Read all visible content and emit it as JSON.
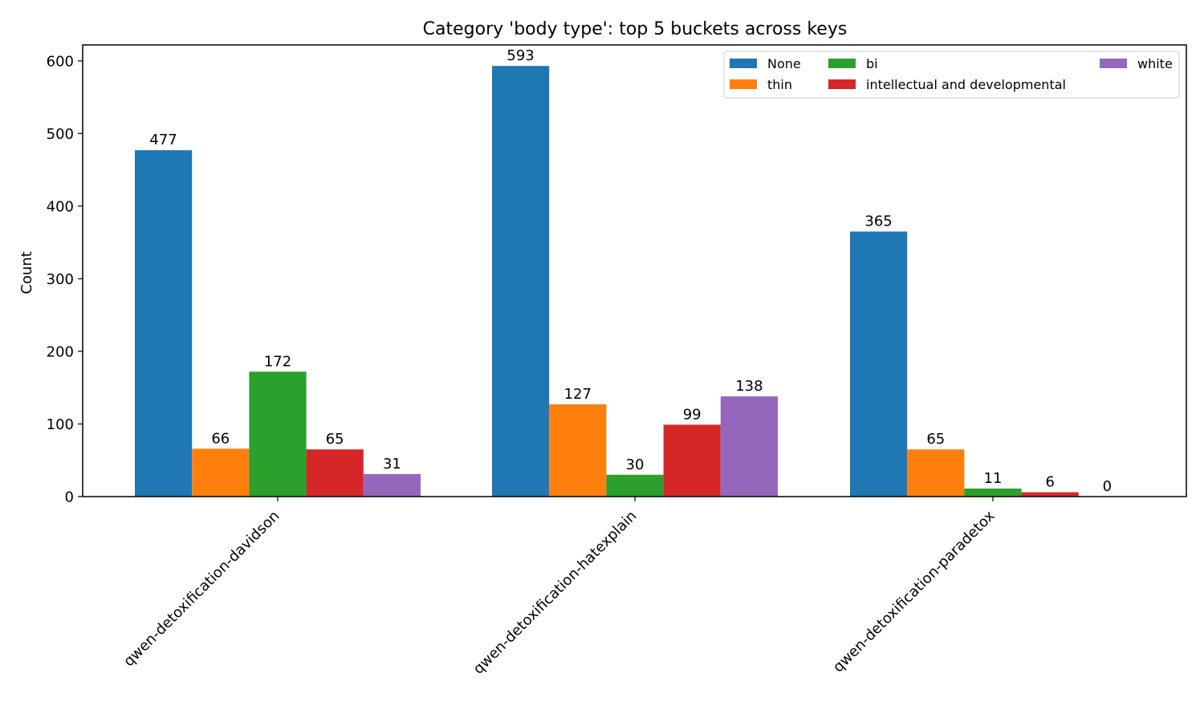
{
  "chart_data": {
    "type": "bar",
    "title": "Category 'body type': top 5 buckets across keys",
    "xlabel": "",
    "ylabel": "Count",
    "ylim": [
      0,
      622
    ],
    "yticks": [
      0,
      100,
      200,
      300,
      400,
      500,
      600
    ],
    "grid": false,
    "legend_position": "top-right",
    "categories": [
      "qwen-detoxification-davidson",
      "qwen-detoxification-hatexplain",
      "qwen-detoxification-paradetox"
    ],
    "series": [
      {
        "name": "None",
        "color": "#1f77b4",
        "values": [
          477,
          593,
          365
        ]
      },
      {
        "name": "thin",
        "color": "#ff7f0e",
        "values": [
          66,
          127,
          65
        ]
      },
      {
        "name": "bi",
        "color": "#2ca02c",
        "values": [
          172,
          30,
          11
        ]
      },
      {
        "name": "intellectual and developmental",
        "color": "#d62728",
        "values": [
          65,
          99,
          6
        ]
      },
      {
        "name": "white",
        "color": "#9467bd",
        "values": [
          31,
          138,
          0
        ]
      }
    ]
  }
}
